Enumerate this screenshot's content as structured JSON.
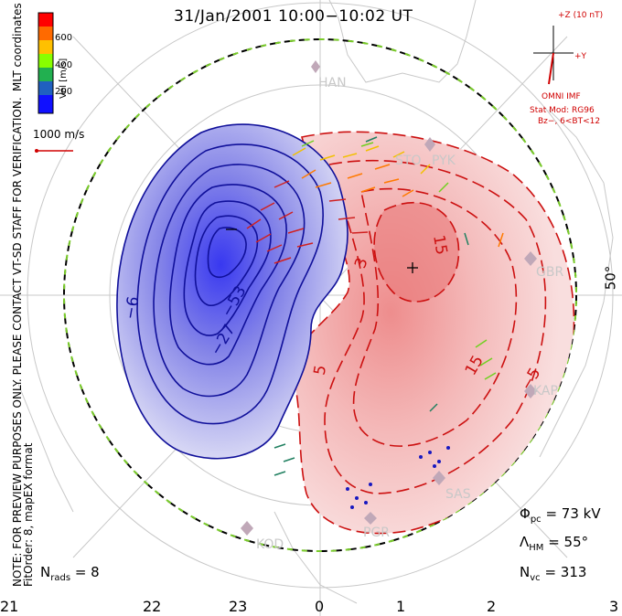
{
  "title": "31/Jan/2001  10:00−10:02  UT",
  "side_note": {
    "line1": "NOTE: FOR PREVIEW PURPOSES ONLY. PLEASE CONTACT VT-SD STAFF FOR VERIFICATION.",
    "line2": "FitOrder: 8, mapEX format",
    "coords": "MLT coordinates"
  },
  "colorbar": {
    "label": "Vel [m/s]",
    "ticks": [
      "600",
      "400",
      "200"
    ],
    "colors": [
      "#ff0000",
      "#ff6a00",
      "#ffc000",
      "#88ff00",
      "#22b050",
      "#2060c0",
      "#1010ff"
    ]
  },
  "scale": {
    "label": "1000 m/s"
  },
  "imf": {
    "z_label": "+Z (10 nT)",
    "y_label": "+Y",
    "name": "OMNI IMF",
    "model_line1": "Stat Mod: RG96",
    "model_line2": "Bz−, 6<BT<12"
  },
  "stations": [
    "HAN",
    "STO",
    "PYK",
    "GBR",
    "KAP",
    "SAS",
    "PGR",
    "KOD"
  ],
  "lat_label": "50°",
  "contour_labels": [
    "−6",
    "−53",
    "−27",
    "3",
    "15",
    "15",
    "5",
    "−5"
  ],
  "mlt_labels": [
    "21",
    "22",
    "23",
    "0",
    "1",
    "2",
    "3"
  ],
  "stats": {
    "phi_pc": "Φ",
    "phi_pc_sub": "pc",
    "phi_pc_value": "= 73 kV",
    "lambda": "Λ",
    "lambda_sub": "HM",
    "lambda_value": "= 55°",
    "nvc": "N",
    "nvc_sub": "vc",
    "nvc_value": "= 313",
    "nrads": "N",
    "nrads_sub": "rads",
    "nrads_value": "= 8"
  }
}
